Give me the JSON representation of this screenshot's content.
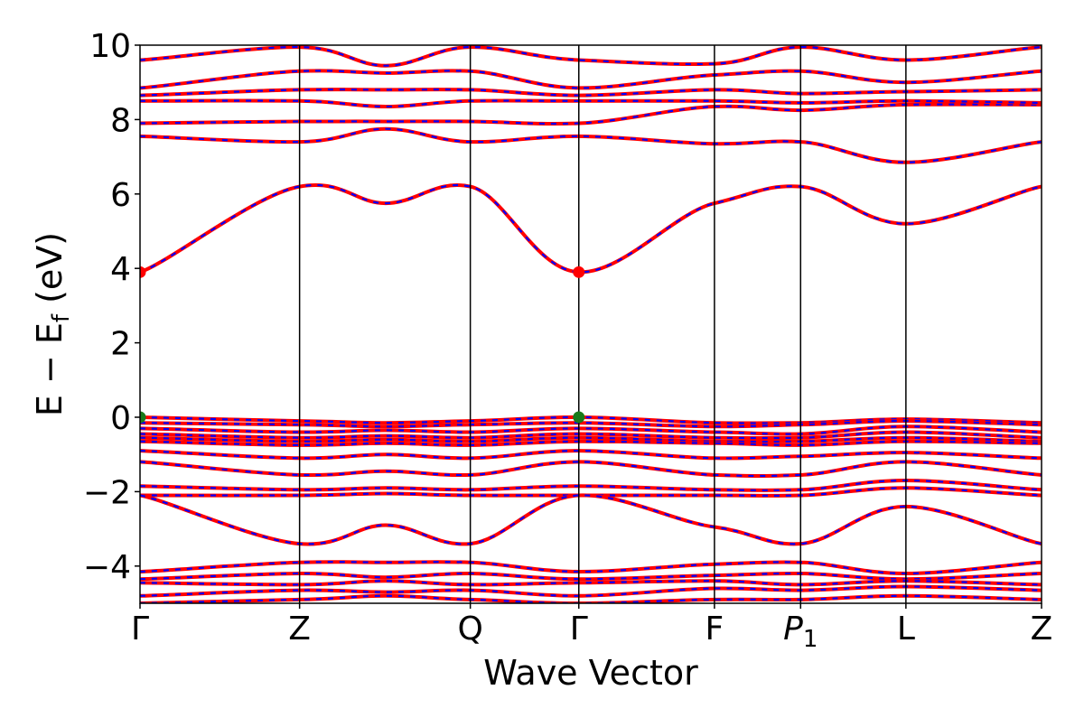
{
  "chart_data": {
    "type": "line",
    "title": "",
    "xlabel": "Wave Vector",
    "ylabel_main": "E − E",
    "ylabel_sub": "f",
    "ylabel_unit": "(eV)",
    "ylim": [
      -5,
      10
    ],
    "yticks": [
      -4,
      -2,
      0,
      2,
      4,
      6,
      8,
      10
    ],
    "ytick_labels": [
      "−4",
      "−2",
      "0",
      "2",
      "4",
      "6",
      "8",
      "10"
    ],
    "kpath_labels": [
      {
        "label": "Γ",
        "sub": ""
      },
      {
        "label": "Z",
        "sub": ""
      },
      {
        "label": "Q",
        "sub": ""
      },
      {
        "label": "Γ",
        "sub": ""
      },
      {
        "label": "F",
        "sub": ""
      },
      {
        "label": "P",
        "sub": "1",
        "italic": true
      },
      {
        "label": "L",
        "sub": ""
      },
      {
        "label": "Z",
        "sub": ""
      }
    ],
    "kpath_positions": [
      0,
      1.0,
      2.07,
      2.75,
      3.6,
      4.14,
      4.8,
      5.65
    ],
    "grid": false,
    "line_colors": {
      "primary": "#ff0000",
      "overlay": "#0000ff"
    },
    "markers": [
      {
        "x": 0,
        "y": 3.9,
        "color": "#ff0000"
      },
      {
        "x": 2.75,
        "y": 3.9,
        "color": "#ff0000"
      },
      {
        "x": 0,
        "y": 0.0,
        "color": "#1a7a1a"
      },
      {
        "x": 2.75,
        "y": 0.0,
        "color": "#1a7a1a"
      }
    ],
    "series": [
      {
        "values": [
          3.9,
          6.2,
          5.75,
          6.2,
          3.9,
          5.75,
          6.2,
          5.2,
          6.2
        ]
      },
      {
        "values": [
          0.0,
          -0.1,
          -0.15,
          -0.1,
          0.0,
          -0.15,
          -0.15,
          -0.05,
          -0.15
        ]
      },
      {
        "values": [
          -0.15,
          -0.2,
          -0.25,
          -0.2,
          -0.15,
          -0.25,
          -0.2,
          -0.1,
          -0.2
        ]
      },
      {
        "values": [
          -0.3,
          -0.4,
          -0.35,
          -0.4,
          -0.3,
          -0.4,
          -0.45,
          -0.25,
          -0.4
        ]
      },
      {
        "values": [
          -0.45,
          -0.55,
          -0.5,
          -0.55,
          -0.45,
          -0.55,
          -0.55,
          -0.4,
          -0.55
        ]
      },
      {
        "values": [
          -0.55,
          -0.65,
          -0.6,
          -0.65,
          -0.55,
          -0.65,
          -0.65,
          -0.55,
          -0.65
        ]
      },
      {
        "values": [
          -0.65,
          -0.75,
          -0.7,
          -0.75,
          -0.65,
          -0.7,
          -0.75,
          -0.65,
          -0.7
        ]
      },
      {
        "values": [
          -0.9,
          -1.1,
          -1.0,
          -1.1,
          -0.9,
          -1.1,
          -1.05,
          -0.95,
          -1.1
        ]
      },
      {
        "values": [
          -1.2,
          -1.55,
          -1.45,
          -1.55,
          -1.2,
          -1.55,
          -1.55,
          -1.2,
          -1.55
        ]
      },
      {
        "values": [
          -1.85,
          -1.95,
          -1.9,
          -1.95,
          -1.85,
          -1.95,
          -1.95,
          -1.7,
          -1.95
        ]
      },
      {
        "values": [
          -2.1,
          -2.1,
          -2.05,
          -2.1,
          -2.1,
          -2.1,
          -2.1,
          -1.9,
          -2.1
        ]
      },
      {
        "values": [
          -2.1,
          -3.4,
          -2.9,
          -3.4,
          -2.1,
          -2.95,
          -3.4,
          -2.4,
          -3.4
        ]
      },
      {
        "values": [
          -4.15,
          -3.9,
          -3.9,
          -3.9,
          -4.15,
          -3.95,
          -3.9,
          -4.2,
          -3.9
        ]
      },
      {
        "values": [
          -4.35,
          -4.2,
          -4.3,
          -4.2,
          -4.35,
          -4.25,
          -4.2,
          -4.35,
          -4.2
        ]
      },
      {
        "values": [
          -4.45,
          -4.5,
          -4.4,
          -4.5,
          -4.45,
          -4.4,
          -4.5,
          -4.4,
          -4.5
        ]
      },
      {
        "values": [
          -4.8,
          -4.65,
          -4.7,
          -4.65,
          -4.8,
          -4.6,
          -4.65,
          -4.55,
          -4.65
        ]
      },
      {
        "values": [
          -5.0,
          -4.9,
          -4.8,
          -4.9,
          -5.0,
          -4.9,
          -4.9,
          -4.8,
          -4.9
        ]
      },
      {
        "values": [
          7.55,
          7.4,
          7.75,
          7.4,
          7.55,
          7.35,
          7.4,
          6.85,
          7.4
        ]
      },
      {
        "values": [
          7.9,
          7.95,
          7.95,
          7.95,
          7.9,
          8.35,
          8.25,
          8.4,
          8.4
        ]
      },
      {
        "values": [
          8.5,
          8.5,
          8.35,
          8.5,
          8.5,
          8.5,
          8.45,
          8.5,
          8.45
        ]
      },
      {
        "values": [
          8.65,
          8.8,
          8.8,
          8.8,
          8.65,
          8.8,
          8.7,
          8.75,
          8.8
        ]
      },
      {
        "values": [
          8.85,
          9.3,
          9.25,
          9.3,
          8.85,
          9.2,
          9.3,
          9.0,
          9.3
        ]
      },
      {
        "values": [
          9.6,
          9.95,
          9.45,
          9.95,
          9.6,
          9.5,
          9.95,
          9.6,
          9.95
        ]
      }
    ],
    "series_x": [
      0,
      1.0,
      1.54,
      2.07,
      2.75,
      3.6,
      4.14,
      4.8,
      5.65
    ]
  }
}
